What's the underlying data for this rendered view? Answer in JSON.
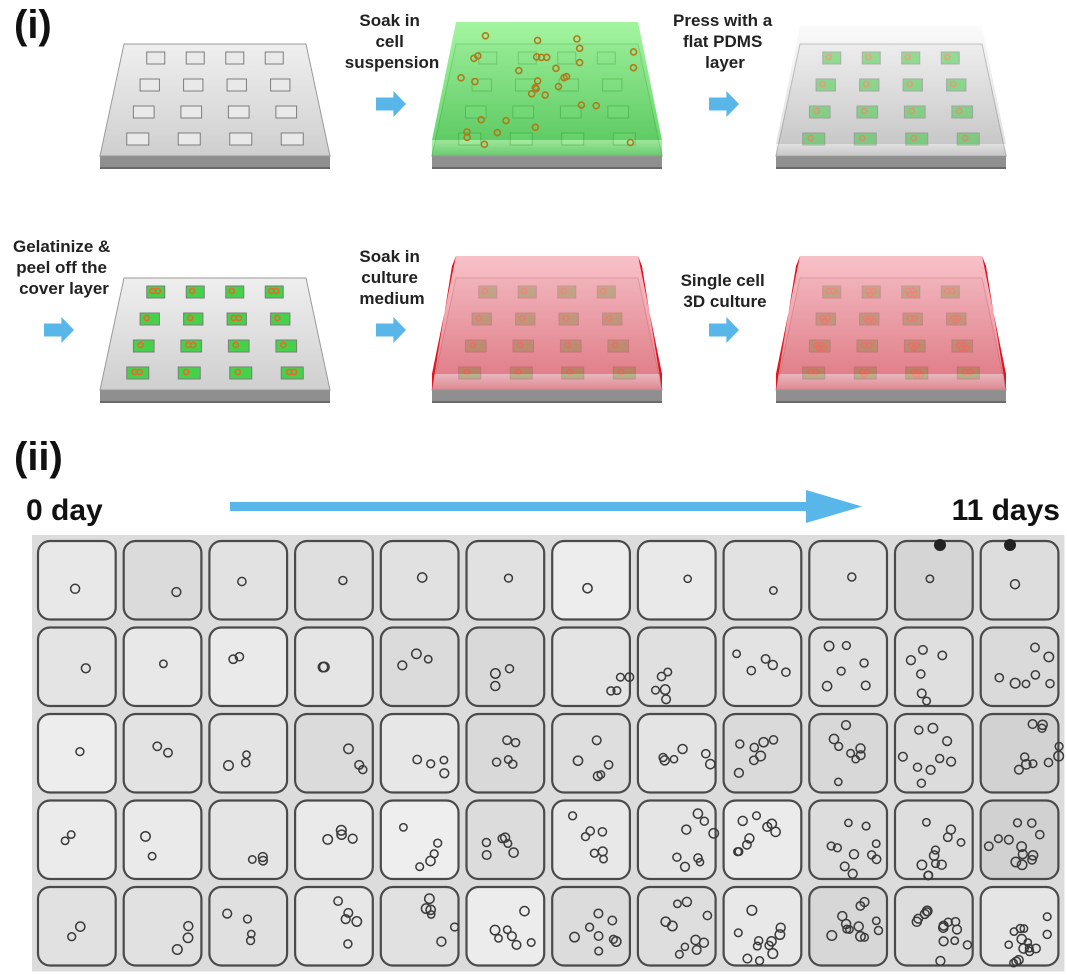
{
  "panel_i": {
    "label": "(i)",
    "steps": [
      {
        "lines": [
          "Soak in",
          "cell",
          "suspension"
        ]
      },
      {
        "lines": [
          "Press with a",
          "flat PDMS",
          "layer"
        ]
      },
      {
        "lines": [
          "Gelatinize &",
          "peel off the",
          "cover layer"
        ]
      },
      {
        "lines": [
          "Soak in",
          "culture",
          "medium"
        ]
      },
      {
        "lines": [
          "Single cell",
          "3D culture"
        ]
      }
    ]
  },
  "panel_ii": {
    "label": "(ii)",
    "start_label": "0 day",
    "end_label": "11 days",
    "rows": 5,
    "columns": 12
  },
  "colors": {
    "arrow": "#58b7e8",
    "chip_gray": "#d9d9d9",
    "medium_green": "#46d14a",
    "medium_red": "#e4485a",
    "cell_orange": "#e8692a",
    "well_border": "#4a4a4a"
  }
}
